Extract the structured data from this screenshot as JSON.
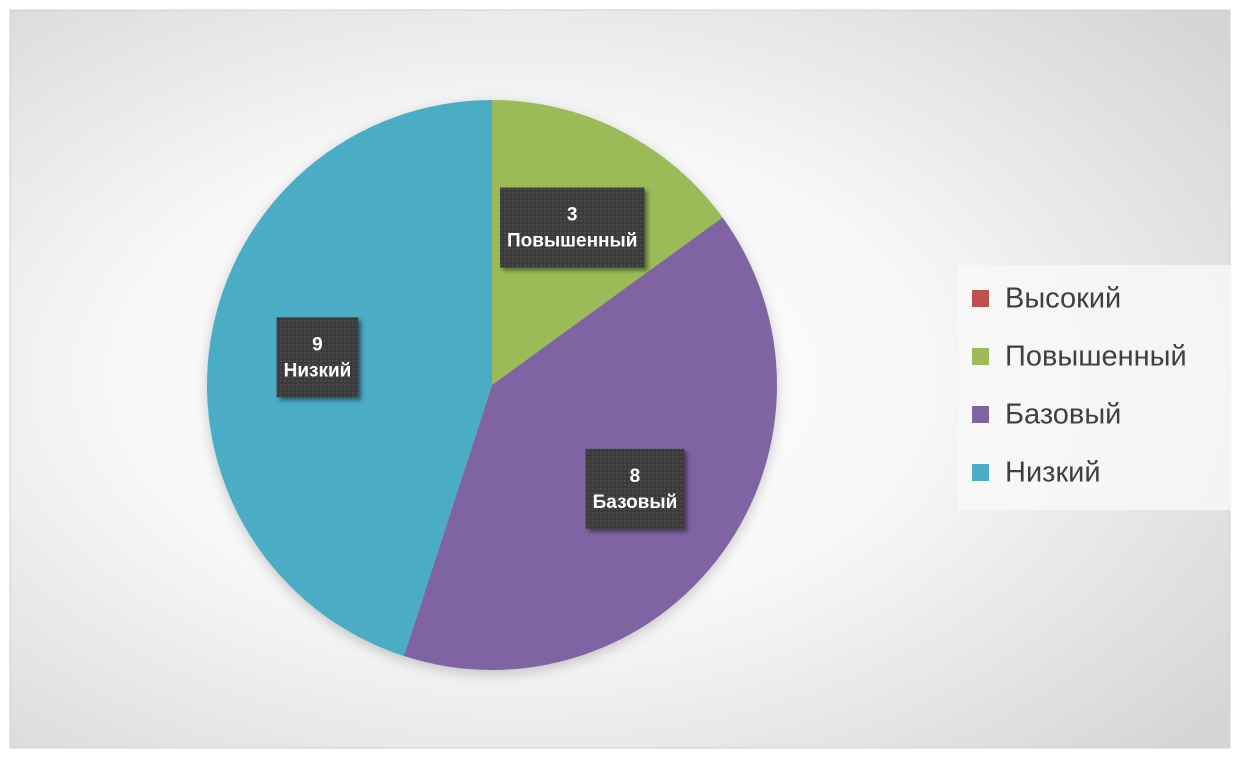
{
  "chart_data": {
    "type": "pie",
    "categories": [
      "Высокий",
      "Повышенный",
      "Базовый",
      "Низкий"
    ],
    "values": [
      0,
      3,
      8,
      9
    ],
    "colors": [
      "#c0504d",
      "#9bbb59",
      "#8064a2",
      "#4bacc6"
    ],
    "legend": "right"
  }
}
